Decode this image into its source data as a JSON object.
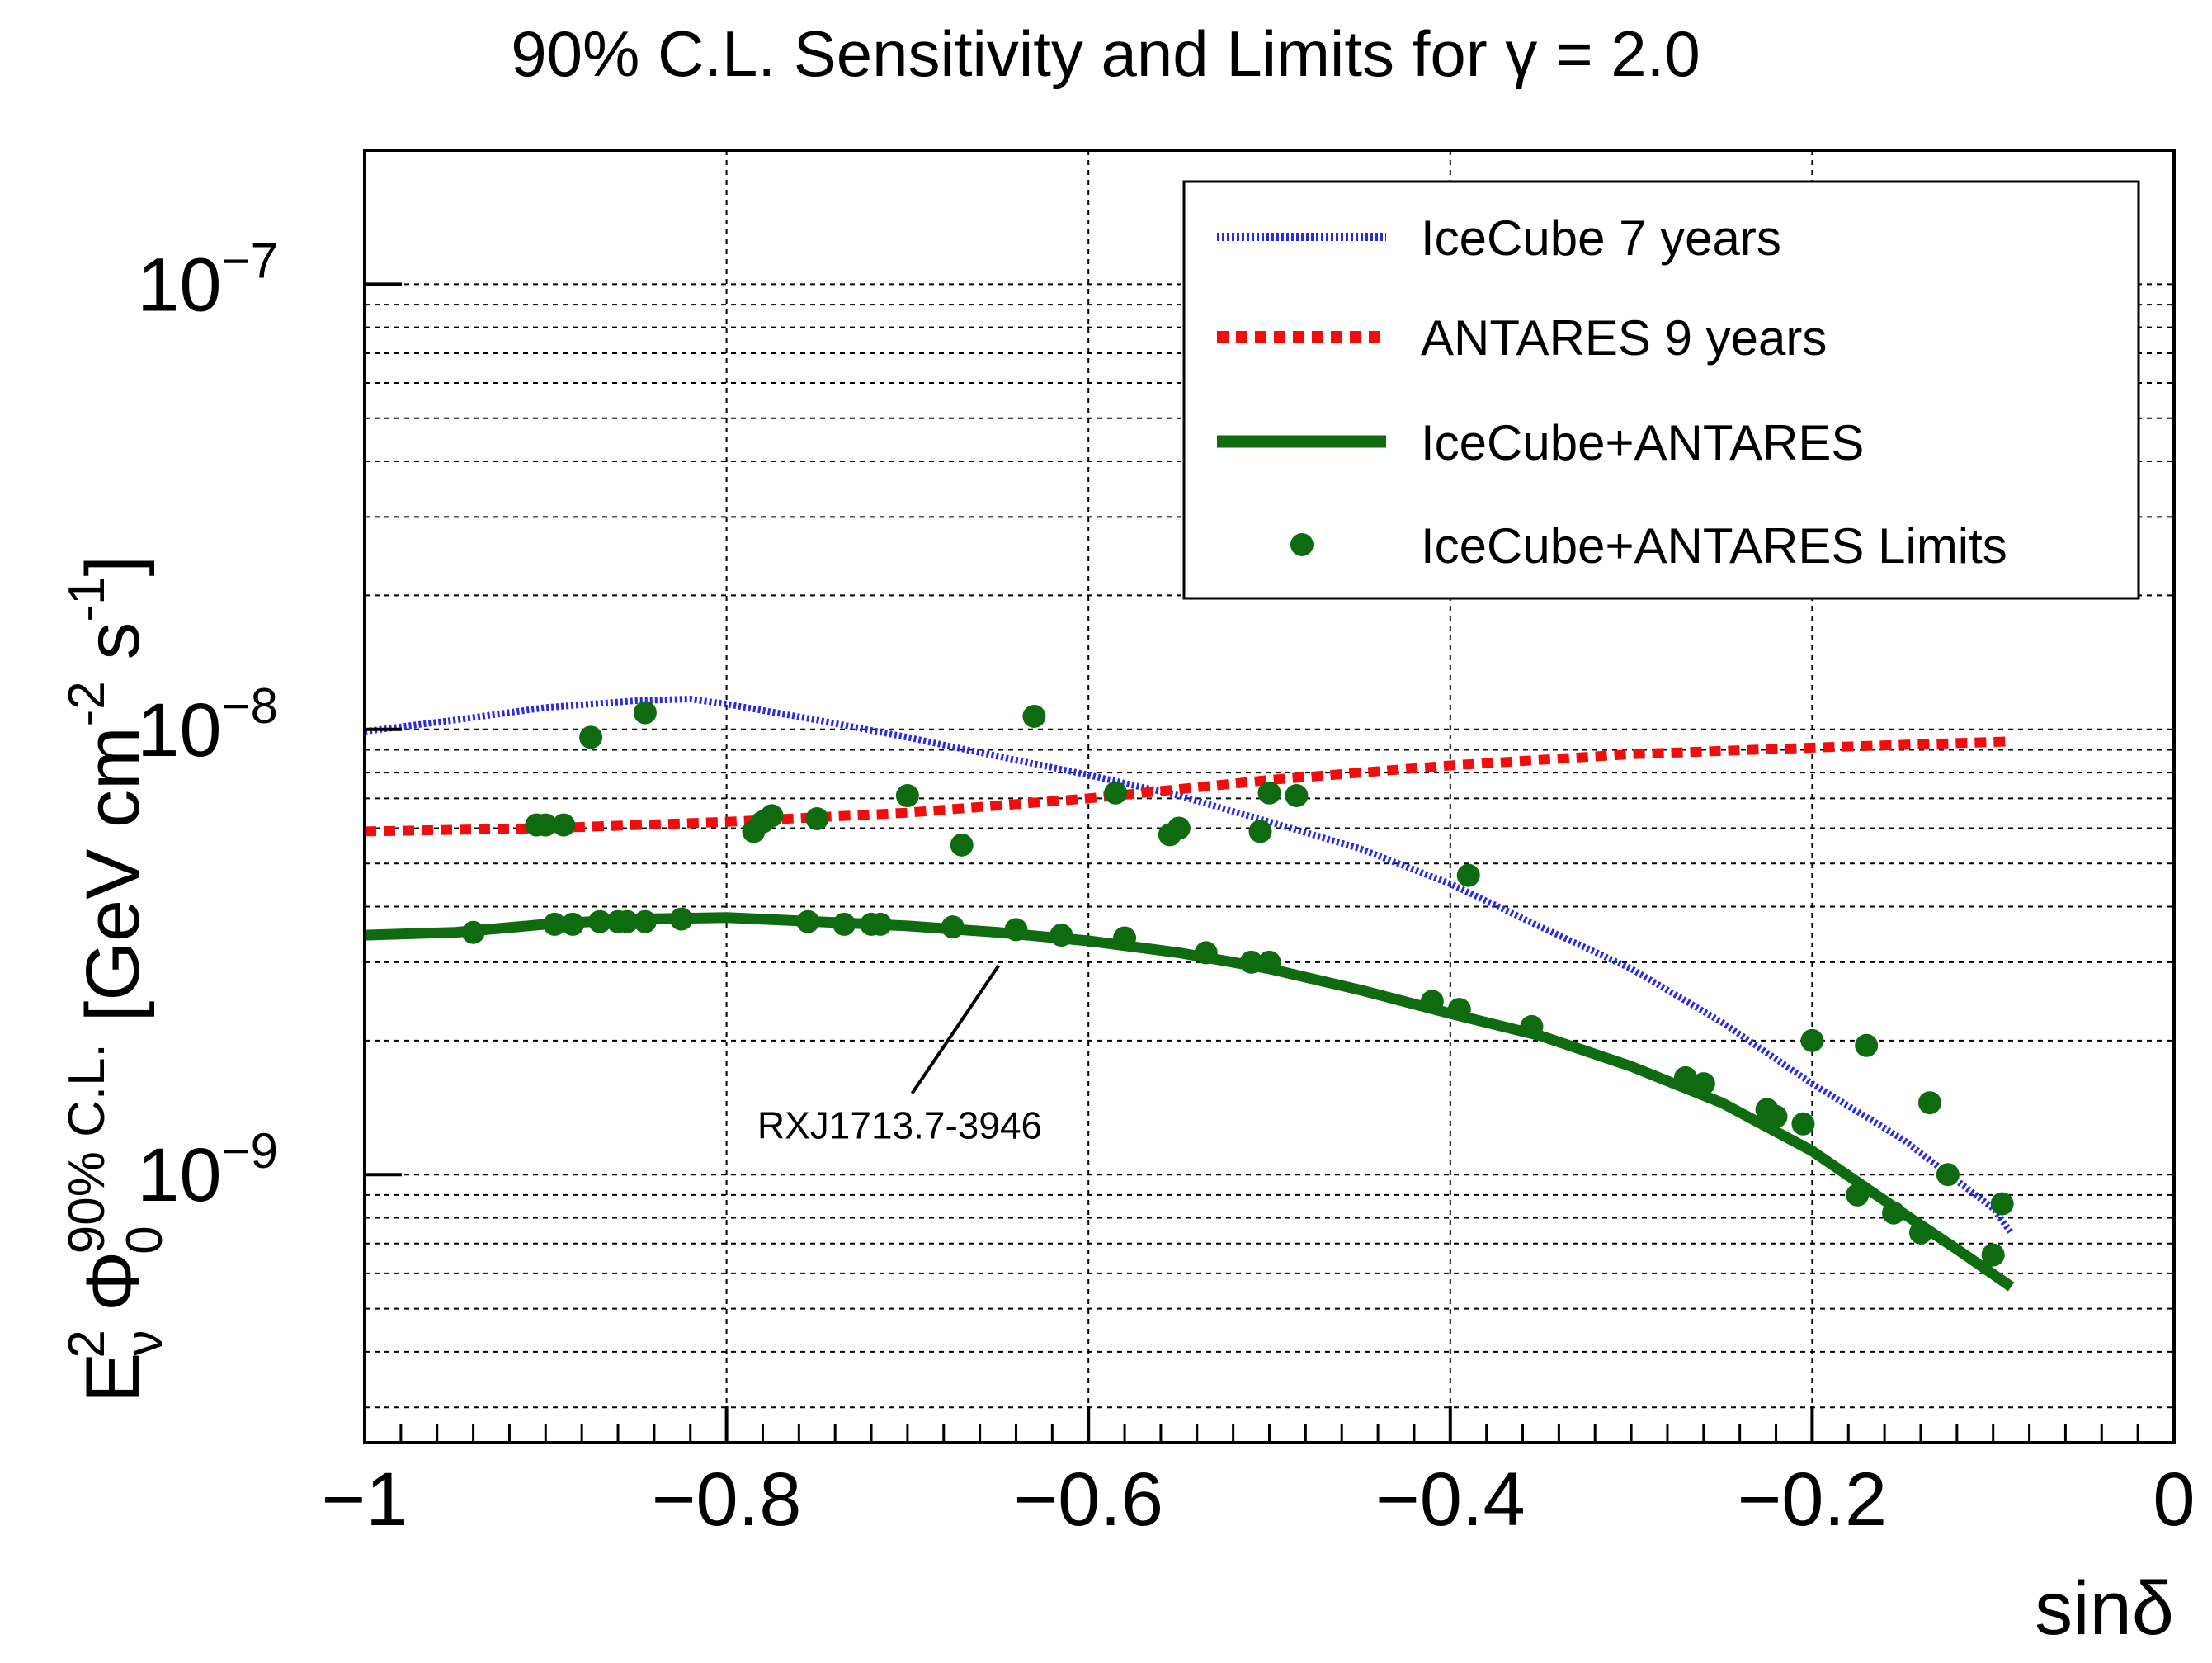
{
  "chart_data": {
    "type": "line",
    "title": "90% C.L. Sensitivity and Limits for γ = 2.0",
    "xlabel": "sinδ",
    "ylabel": {
      "e": "E",
      "e_sup": "2",
      "e_sub": "ν",
      "phi": "Φ",
      "phi_sup": "90% C.L.",
      "phi_sub": "0",
      "units_open": "[GeV cm",
      "units_sup1": "-2",
      "units_mid": " s",
      "units_sup2": "-1",
      "units_close": "]"
    },
    "xlim": [
      -1,
      0
    ],
    "ylim": [
      2.5e-10,
      2e-07
    ],
    "yscale": "log",
    "grid": true,
    "legend_position": "top-right",
    "x_ticks": [
      {
        "value": -1,
        "label": "−1"
      },
      {
        "value": -0.8,
        "label": "−0.8"
      },
      {
        "value": -0.6,
        "label": "−0.6"
      },
      {
        "value": -0.4,
        "label": "−0.4"
      },
      {
        "value": -0.2,
        "label": "−0.2"
      },
      {
        "value": 0,
        "label": "0"
      }
    ],
    "y_ticks": [
      {
        "value": 1e-07,
        "base": "10",
        "exp": "−7"
      },
      {
        "value": 1e-08,
        "base": "10",
        "exp": "−8"
      },
      {
        "value": 1e-09,
        "base": "10",
        "exp": "−9"
      }
    ],
    "series": [
      {
        "name": "IceCube 7 years",
        "style": "dotted",
        "color": "#2a2ae6",
        "x": [
          -1.0,
          -0.95,
          -0.9,
          -0.85,
          -0.82,
          -0.8,
          -0.75,
          -0.7,
          -0.65,
          -0.6,
          -0.55,
          -0.5,
          -0.45,
          -0.4,
          -0.35,
          -0.3,
          -0.25,
          -0.2,
          -0.15,
          -0.1,
          -0.09
        ],
        "y": [
          9.9e-09,
          1.05e-08,
          1.12e-08,
          1.16e-08,
          1.17e-08,
          1.14e-08,
          1.05e-08,
          9.6e-09,
          8.7e-09,
          7.9e-09,
          7.1e-09,
          6.2e-09,
          5.4e-09,
          4.5e-09,
          3.6e-09,
          2.9e-09,
          2.2e-09,
          1.6e-09,
          1.2e-09,
          8.4e-10,
          7.4e-10
        ]
      },
      {
        "name": "ANTARES 9 years",
        "style": "dashed",
        "color": "#f20d0d",
        "x": [
          -1.0,
          -0.9,
          -0.8,
          -0.7,
          -0.6,
          -0.5,
          -0.4,
          -0.3,
          -0.2,
          -0.09
        ],
        "y": [
          5.9e-09,
          6e-09,
          6.2e-09,
          6.5e-09,
          7e-09,
          7.7e-09,
          8.3e-09,
          8.8e-09,
          9.1e-09,
          9.4e-09
        ]
      },
      {
        "name": "IceCube+ANTARES",
        "style": "solid",
        "color": "#0f6b0f",
        "x": [
          -1.0,
          -0.95,
          -0.9,
          -0.85,
          -0.8,
          -0.75,
          -0.7,
          -0.65,
          -0.6,
          -0.55,
          -0.5,
          -0.45,
          -0.4,
          -0.35,
          -0.3,
          -0.25,
          -0.2,
          -0.15,
          -0.12,
          -0.09
        ],
        "y": [
          3.45e-09,
          3.5e-09,
          3.65e-09,
          3.75e-09,
          3.78e-09,
          3.7e-09,
          3.62e-09,
          3.5e-09,
          3.35e-09,
          3.15e-09,
          2.9e-09,
          2.6e-09,
          2.3e-09,
          2.05e-09,
          1.75e-09,
          1.45e-09,
          1.13e-09,
          8.2e-10,
          6.8e-10,
          5.6e-10
        ]
      },
      {
        "name": "IceCube+ANTARES Limits",
        "style": "markers",
        "color": "#0f6b0f",
        "x": [
          -0.94,
          -0.905,
          -0.9,
          -0.895,
          -0.89,
          -0.885,
          -0.875,
          -0.87,
          -0.86,
          -0.855,
          -0.845,
          -0.845,
          -0.825,
          -0.785,
          -0.78,
          -0.775,
          -0.755,
          -0.75,
          -0.735,
          -0.72,
          -0.715,
          -0.7,
          -0.675,
          -0.67,
          -0.64,
          -0.63,
          -0.615,
          -0.585,
          -0.58,
          -0.555,
          -0.55,
          -0.535,
          -0.51,
          -0.505,
          -0.5,
          -0.5,
          -0.485,
          -0.41,
          -0.39,
          -0.395,
          -0.355,
          -0.27,
          -0.26,
          -0.225,
          -0.22,
          -0.205,
          -0.2,
          -0.175,
          -0.17,
          -0.155,
          -0.14,
          -0.135,
          -0.125,
          -0.1,
          -0.095
        ],
        "y": [
          3.5e-09,
          6.1e-09,
          6.1e-09,
          3.65e-09,
          6.1e-09,
          3.65e-09,
          9.6e-09,
          3.7e-09,
          3.7e-09,
          3.7e-09,
          1.09e-08,
          3.7e-09,
          3.75e-09,
          5.9e-09,
          6.2e-09,
          6.4e-09,
          3.7e-09,
          6.3e-09,
          3.65e-09,
          3.65e-09,
          3.65e-09,
          7.1e-09,
          3.6e-09,
          5.5e-09,
          3.55e-09,
          1.07e-08,
          3.45e-09,
          7.2e-09,
          3.4e-09,
          5.8e-09,
          6e-09,
          3.15e-09,
          3e-09,
          5.9e-09,
          3e-09,
          7.2e-09,
          7.1e-09,
          2.45e-09,
          4.7e-09,
          2.35e-09,
          2.15e-09,
          1.65e-09,
          1.6e-09,
          1.4e-09,
          1.35e-09,
          1.3e-09,
          2e-09,
          9e-10,
          1.95e-09,
          8.2e-10,
          7.4e-10,
          1.45e-09,
          1e-09,
          6.6e-10,
          8.6e-10
        ]
      }
    ],
    "annotations": [
      {
        "text": "RXJ1713.7-3946",
        "x": -0.645,
        "y": 3.5e-09
      }
    ]
  }
}
